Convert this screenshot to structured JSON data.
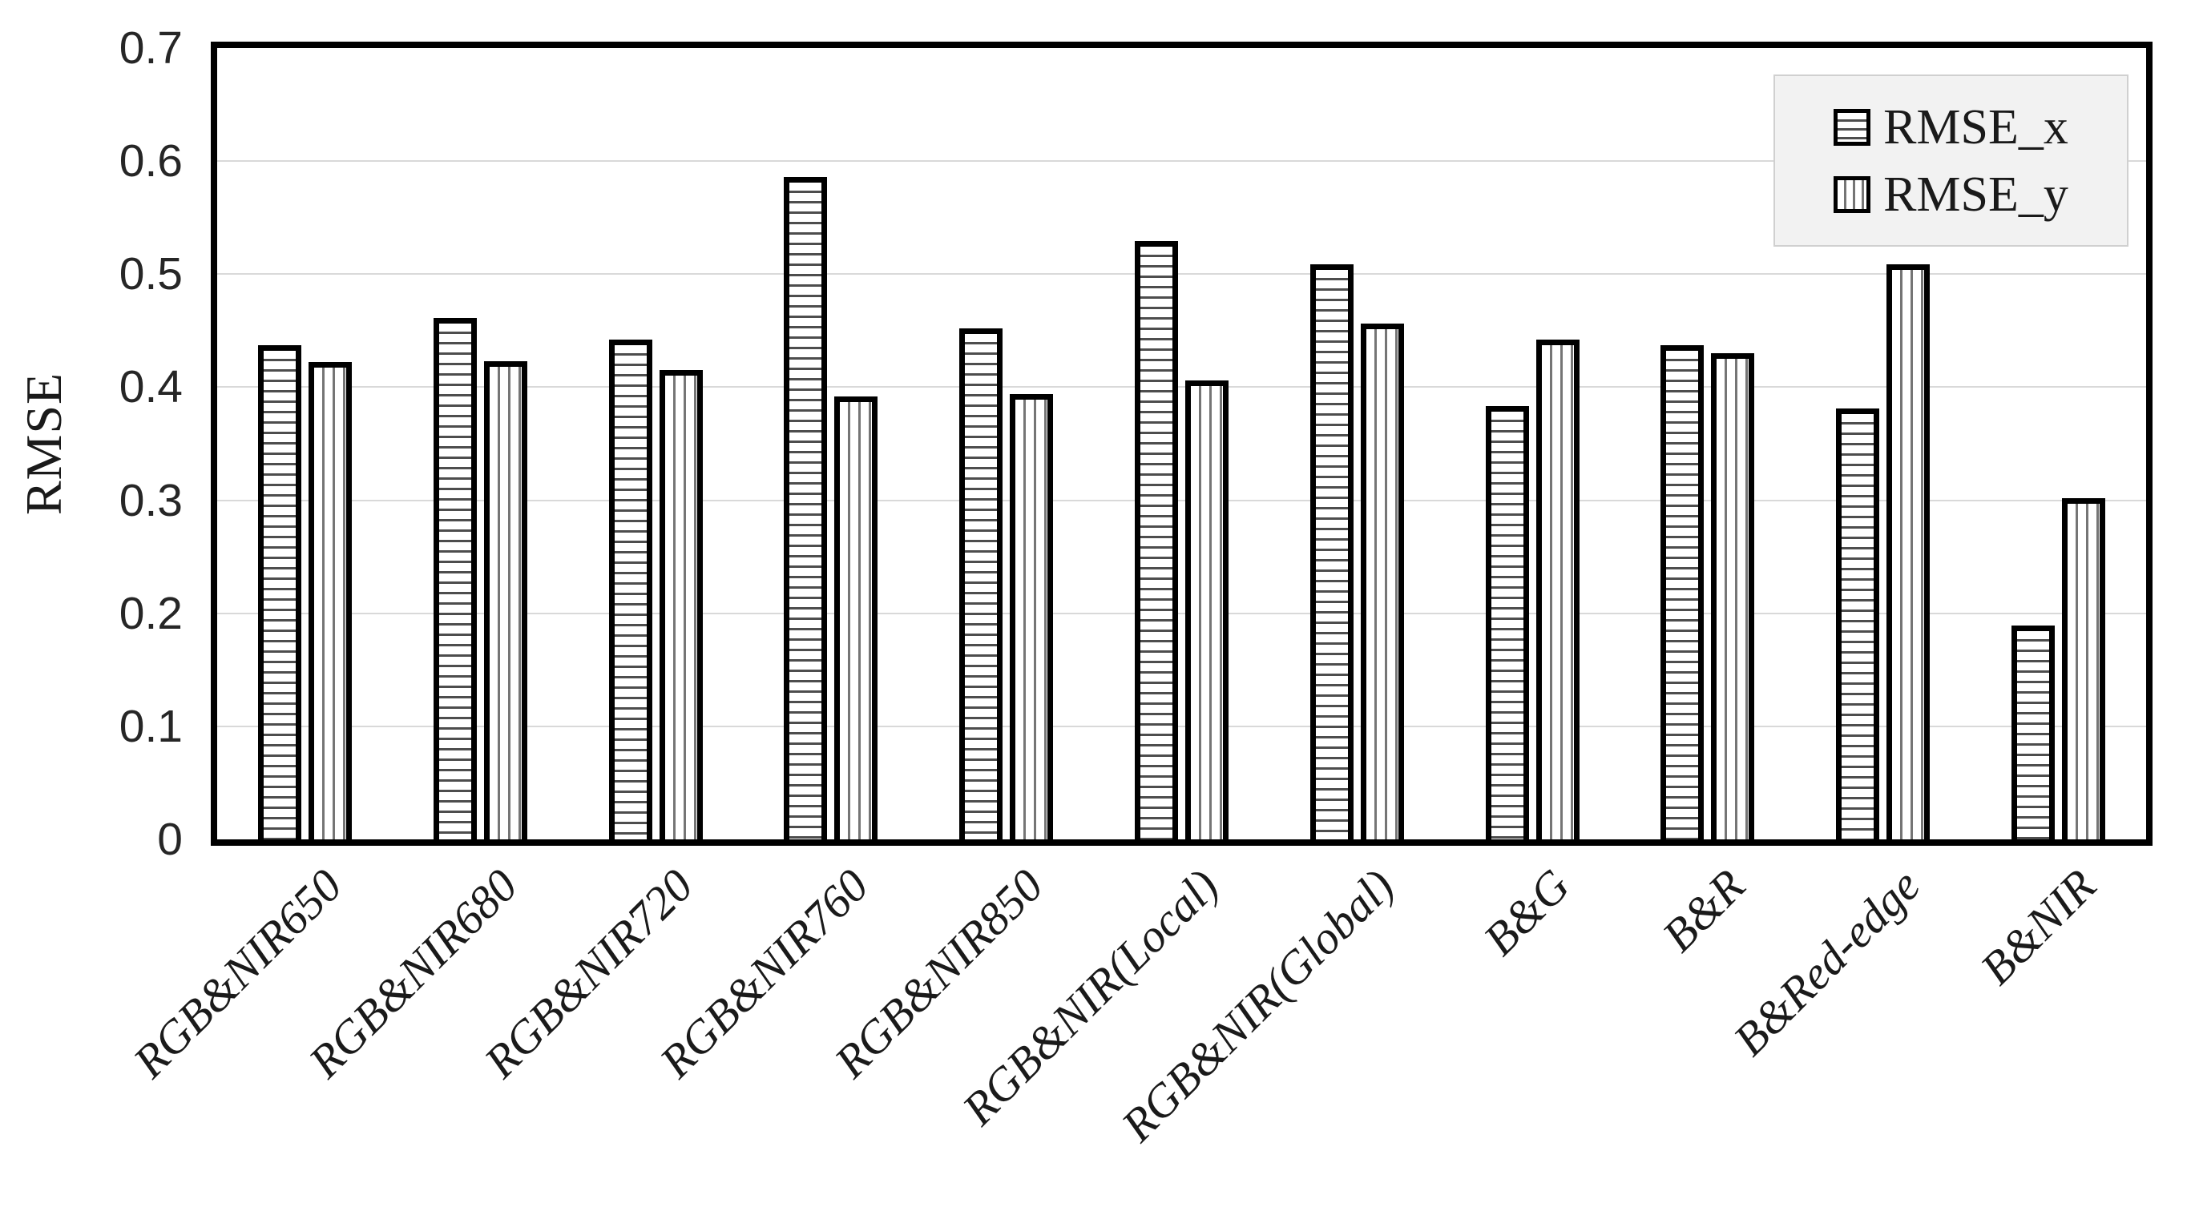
{
  "chart_data": {
    "type": "bar",
    "title": "",
    "xlabel": "",
    "ylabel": "RMSE",
    "ylim": [
      0,
      0.7
    ],
    "yticks": [
      0,
      0.1,
      0.2,
      0.3,
      0.4,
      0.5,
      0.6,
      0.7
    ],
    "ytick_labels": [
      "0",
      "0.1",
      "0.2",
      "0.3",
      "0.4",
      "0.5",
      "0.6",
      "0.7"
    ],
    "grid": "horizontal",
    "legend": {
      "position": "top-right",
      "entries": [
        "RMSE_x",
        "RMSE_y"
      ]
    },
    "categories": [
      "RGB&NIR650",
      "RGB&NIR680",
      "RGB&NIR720",
      "RGB&NIR760",
      "RGB&NIR850",
      "RGB&NIR(Local)",
      "RGB&NIR(Global)",
      "B&G",
      "B&R",
      "B&Red-edge",
      "B&NIR"
    ],
    "series": [
      {
        "name": "RMSE_x",
        "pattern": "horizontal-stripes",
        "values": [
          0.437,
          0.461,
          0.442,
          0.586,
          0.452,
          0.529,
          0.509,
          0.383,
          0.437,
          0.381,
          0.189
        ]
      },
      {
        "name": "RMSE_y",
        "pattern": "vertical-stripes",
        "values": [
          0.422,
          0.423,
          0.415,
          0.392,
          0.394,
          0.406,
          0.456,
          0.442,
          0.43,
          0.509,
          0.302
        ]
      }
    ],
    "colors": {
      "bar_fill": "#ffffff",
      "bar_border": "#000000",
      "stripe_x": "#4d4d4d",
      "stripe_y": "#757575",
      "gridline": "#d9d9d9",
      "legend_bg": "#f2f2f2",
      "legend_border": "#d0d0d0",
      "text": "#1a1a1a"
    }
  }
}
